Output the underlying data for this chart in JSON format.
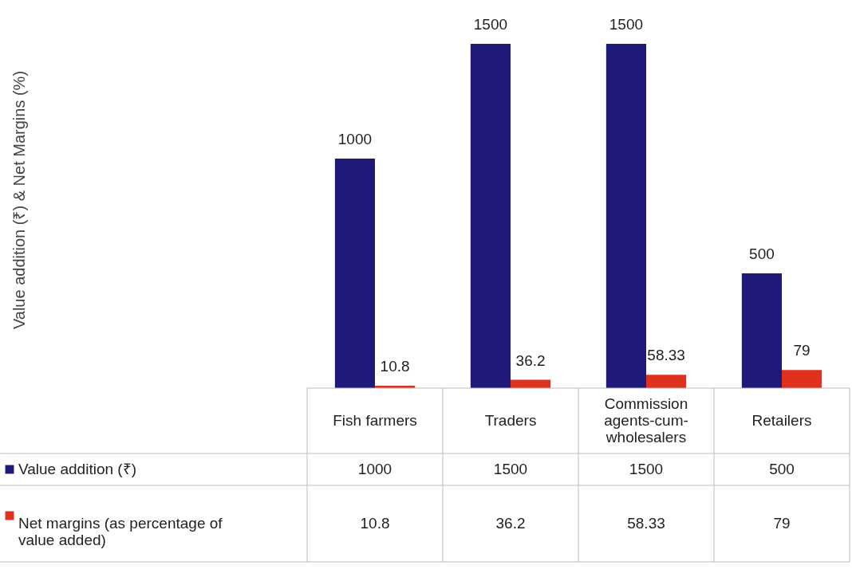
{
  "chart_data": {
    "type": "bar",
    "annotations": [
      "Value addition (₹) & Net Margins (%)"
    ],
    "categories": [
      "Fish farmers",
      "Traders",
      "Commission agents-cum-wholesalers",
      "Retailers"
    ],
    "series": [
      {
        "name": "Value addition (₹)",
        "color": "#1f1a7a",
        "values": [
          1000,
          1500,
          1500,
          500
        ],
        "value_labels": [
          "1000",
          "1500",
          "1500",
          "500"
        ]
      },
      {
        "name": "Net margins (as percentage of value added)",
        "color": "#e0301e",
        "values": [
          10.8,
          36.2,
          58.33,
          79
        ],
        "value_labels": [
          "10.8",
          "36.2",
          "58.33",
          "79"
        ]
      }
    ],
    "data_labels": true,
    "legend": "bottom"
  }
}
